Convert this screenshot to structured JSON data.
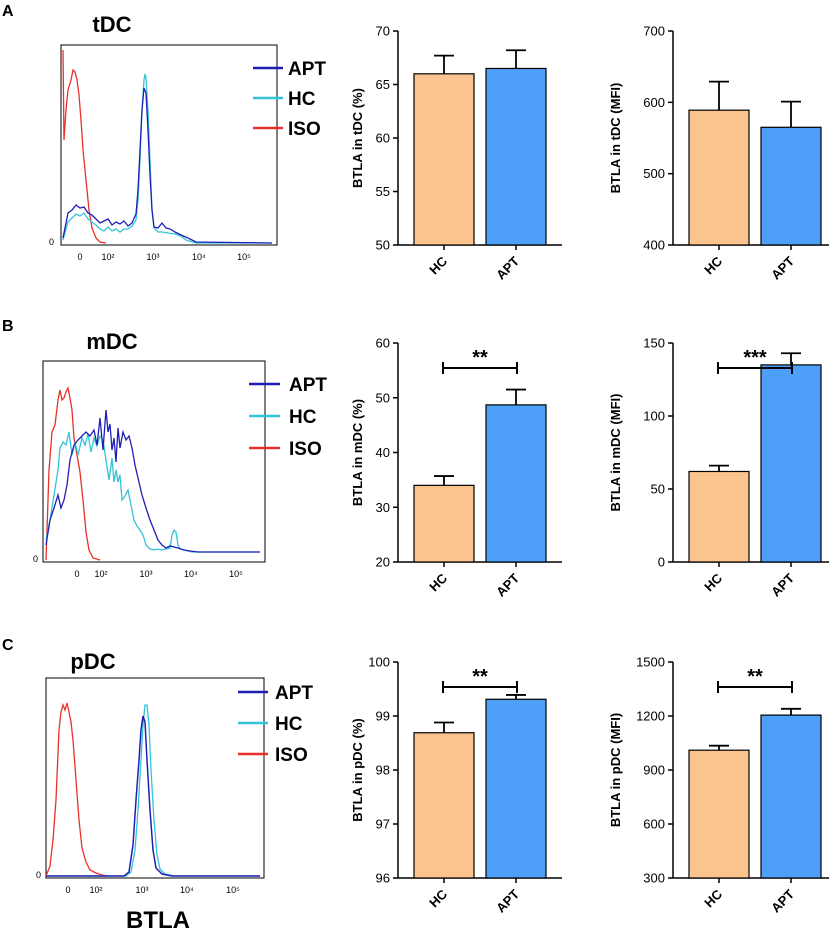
{
  "colors": {
    "apt_line": "#1f1fb4",
    "hc_line": "#33c4d8",
    "iso_line": "#e8312a",
    "hc_bar": "#fbc48e",
    "apt_bar": "#4d9ff7",
    "axis": "#000000"
  },
  "panels": [
    {
      "letter": "A",
      "histogram": {
        "title": "tDC",
        "legend": [
          "APT",
          "HC",
          "ISO"
        ],
        "ylabel": "0",
        "xticks": [
          "0",
          "10²",
          "10³",
          "10⁴",
          "10⁵"
        ],
        "xlabel": ""
      }
    },
    {
      "letter": "B",
      "histogram": {
        "title": "mDC",
        "legend": [
          "APT",
          "HC",
          "ISO"
        ],
        "ylabel": "0",
        "xticks": [
          "0",
          "10²",
          "10³",
          "10⁴",
          "10⁵"
        ],
        "xlabel": ""
      }
    },
    {
      "letter": "C",
      "histogram": {
        "title": "pDC",
        "legend": [
          "APT",
          "HC",
          "ISO"
        ],
        "ylabel": "0",
        "xticks": [
          "0",
          "10²",
          "10³",
          "10⁴",
          "10⁵"
        ],
        "xlabel": "BTLA"
      }
    }
  ],
  "chart_data": [
    {
      "type": "bar",
      "title": "",
      "xlabel": "",
      "ylabel": "BTLA in tDC (%)",
      "categories": [
        "HC",
        "APT"
      ],
      "values": [
        66.0,
        66.5
      ],
      "errors": [
        1.7,
        1.7
      ],
      "ylim": [
        50,
        70
      ],
      "yticks": [
        "50",
        "55",
        "60",
        "65",
        "70"
      ],
      "significance": ""
    },
    {
      "type": "bar",
      "title": "",
      "xlabel": "",
      "ylabel": "BTLA in tDC (MFI)",
      "categories": [
        "HC",
        "APT"
      ],
      "values": [
        589,
        565
      ],
      "errors": [
        40,
        36
      ],
      "ylim": [
        400,
        700
      ],
      "yticks": [
        "400",
        "500",
        "600",
        "700"
      ],
      "significance": ""
    },
    {
      "type": "bar",
      "title": "",
      "xlabel": "",
      "ylabel": "BTLA in mDC (%)",
      "categories": [
        "HC",
        "APT"
      ],
      "values": [
        34.0,
        48.7
      ],
      "errors": [
        1.7,
        2.8
      ],
      "ylim": [
        20,
        60
      ],
      "yticks": [
        "20",
        "30",
        "40",
        "50",
        "60"
      ],
      "significance": "**"
    },
    {
      "type": "bar",
      "title": "",
      "xlabel": "",
      "ylabel": "BTLA in mDC (MFI)",
      "categories": [
        "HC",
        "APT"
      ],
      "values": [
        62,
        135
      ],
      "errors": [
        4,
        8
      ],
      "ylim": [
        0,
        150
      ],
      "yticks": [
        "0",
        "50",
        "100",
        "150"
      ],
      "significance": "***"
    },
    {
      "type": "bar",
      "title": "",
      "xlabel": "",
      "ylabel": "BTLA in pDC (%)",
      "categories": [
        "HC",
        "APT"
      ],
      "values": [
        98.69,
        99.31
      ],
      "errors": [
        0.19,
        0.08
      ],
      "ylim": [
        96,
        100
      ],
      "yticks": [
        "96",
        "97",
        "98",
        "99",
        "100"
      ],
      "significance": "**"
    },
    {
      "type": "bar",
      "title": "",
      "xlabel": "",
      "ylabel": "BTLA in pDC (MFI)",
      "categories": [
        "HC",
        "APT"
      ],
      "values": [
        1010,
        1205
      ],
      "errors": [
        25,
        35
      ],
      "ylim": [
        300,
        1500
      ],
      "yticks": [
        "300",
        "600",
        "900",
        "1200",
        "1500"
      ],
      "significance": "**"
    }
  ]
}
